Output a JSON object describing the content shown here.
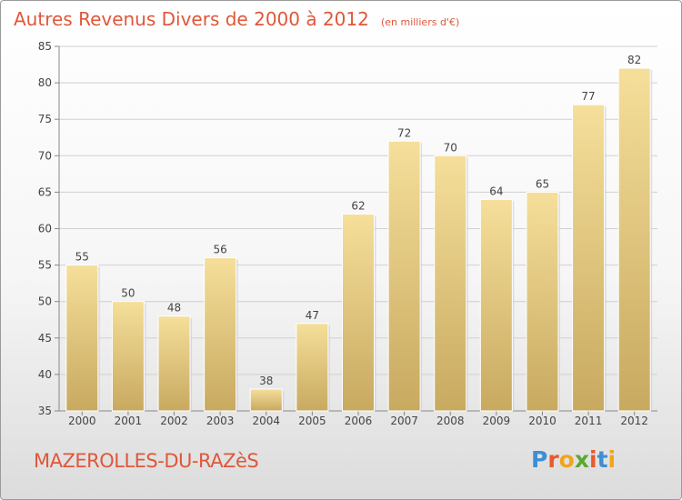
{
  "chart_data": {
    "type": "bar",
    "title": "Autres Revenus Divers de 2000 à 2012",
    "subtitle": "(en milliers d'€)",
    "categories": [
      "2000",
      "2001",
      "2002",
      "2003",
      "2004",
      "2005",
      "2006",
      "2007",
      "2008",
      "2009",
      "2010",
      "2011",
      "2012"
    ],
    "values": [
      55,
      50,
      48,
      56,
      38,
      47,
      62,
      72,
      70,
      64,
      65,
      77,
      82
    ],
    "ylim": [
      35,
      85
    ],
    "yticks": [
      35,
      40,
      45,
      50,
      55,
      60,
      65,
      70,
      75,
      80,
      85
    ],
    "grid": true,
    "bar_color_top": "#f5df9a",
    "bar_color_bottom": "#c8a960"
  },
  "footer": {
    "city": "MAZEROLLES-DU-RAZèS",
    "logo_letters": [
      "P",
      "r",
      "o",
      "x",
      "i",
      "t",
      "i"
    ],
    "logo_colors": [
      "#3c8fd4",
      "#e85a2c",
      "#f2a51b",
      "#5aa832",
      "#e85a2c",
      "#3c8fd4",
      "#f2a51b"
    ]
  },
  "colors": {
    "accent": "#e0573a"
  }
}
